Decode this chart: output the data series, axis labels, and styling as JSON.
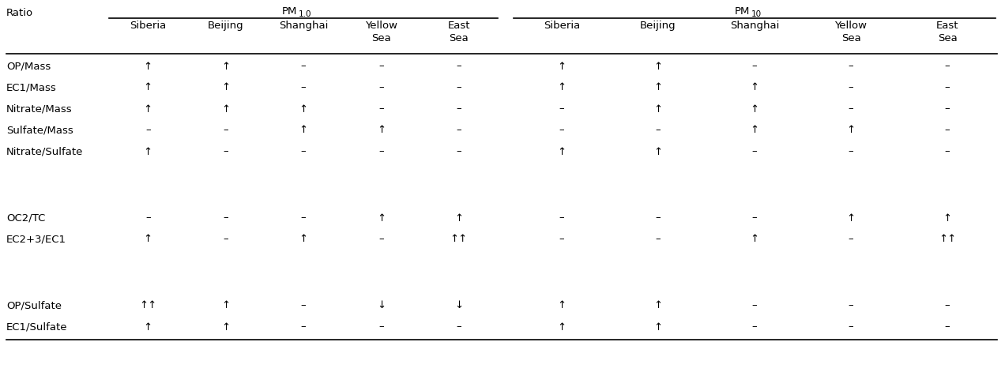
{
  "col_header_ratio": "Ratio",
  "sub_headers_pm1": [
    "Siberia",
    "Beijing",
    "Shanghai",
    "Yellow\nSea",
    "East\nSea"
  ],
  "sub_headers_pm10": [
    "Siberia",
    "Beijing",
    "Shanghai",
    "Yellow\nSea",
    "East\nSea"
  ],
  "row_labels": [
    "OP/Mass",
    "EC1/Mass",
    "Nitrate/Mass",
    "Sulfate/Mass",
    "Nitrate/Sulfate",
    "",
    "OC2/TC",
    "EC2+3/EC1",
    "",
    "OP/Sulfate",
    "EC1/Sulfate"
  ],
  "data": [
    [
      "↑",
      "↑",
      "–",
      "–",
      "–",
      "↑",
      "↑",
      "–",
      "–",
      "–"
    ],
    [
      "↑",
      "↑",
      "–",
      "–",
      "–",
      "↑",
      "↑",
      "↑",
      "–",
      "–"
    ],
    [
      "↑",
      "↑",
      "↑",
      "–",
      "–",
      "–",
      "↑",
      "↑",
      "–",
      "–"
    ],
    [
      "–",
      "–",
      "↑",
      "↑",
      "–",
      "–",
      "–",
      "↑",
      "↑",
      "–"
    ],
    [
      "↑",
      "–",
      "–",
      "–",
      "–",
      "↑",
      "↑",
      "–",
      "–",
      "–"
    ],
    [
      "",
      "",
      "",
      "",
      "",
      "",
      "",
      "",
      "",
      ""
    ],
    [
      "–",
      "–",
      "–",
      "↑",
      "↑",
      "–",
      "–",
      "–",
      "↑",
      "↑"
    ],
    [
      "↑",
      "–",
      "↑",
      "–",
      "↑↑",
      "–",
      "–",
      "↑",
      "–",
      "↑↑"
    ],
    [
      "",
      "",
      "",
      "",
      "",
      "",
      "",
      "",
      "",
      ""
    ],
    [
      "↑↑",
      "↑",
      "–",
      "↓",
      "↓",
      "↑",
      "↑",
      "–",
      "–",
      "–"
    ],
    [
      "↑",
      "↑",
      "–",
      "–",
      "–",
      "↑",
      "↑",
      "–",
      "–",
      "–"
    ]
  ],
  "bg_color": "#ffffff",
  "text_color": "#000000",
  "font_size": 9.5,
  "header_font_size": 9.5,
  "subscript_font_size": 7.5
}
